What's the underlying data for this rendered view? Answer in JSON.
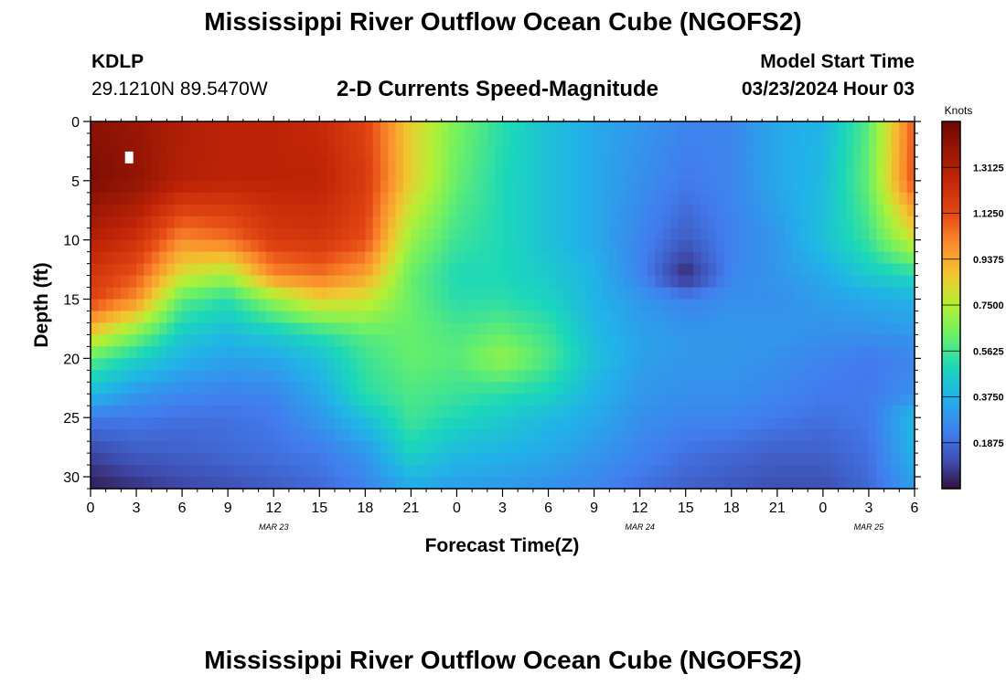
{
  "header": {
    "title": "Mississippi River Outflow Ocean Cube (NGOFS2)",
    "station": "KDLP",
    "coords": "29.1210N  89.5470W",
    "subtitle": "2-D Currents Speed-Magnitude",
    "model_start_label": "Model Start Time",
    "model_start_value": "03/23/2024 Hour 03"
  },
  "footer": {
    "title": "Mississippi River Outflow Ocean Cube (NGOFS2)"
  },
  "chart_data": {
    "type": "heatmap",
    "title": "2-D Currents Speed-Magnitude",
    "xlabel": "Forecast Time(Z)",
    "ylabel": "Depth (ft)",
    "xlim": [
      0,
      54
    ],
    "ylim": [
      31,
      0
    ],
    "x_ticks": [
      0,
      3,
      6,
      9,
      12,
      15,
      18,
      21,
      24,
      27,
      30,
      33,
      36,
      39,
      42,
      45,
      48,
      51,
      54
    ],
    "x_tick_labels": [
      "0",
      "3",
      "6",
      "9",
      "12",
      "15",
      "18",
      "21",
      "0",
      "3",
      "6",
      "9",
      "12",
      "15",
      "18",
      "21",
      "0",
      "3",
      "6"
    ],
    "y_ticks": [
      0,
      5,
      10,
      15,
      20,
      25,
      30
    ],
    "y_tick_labels": [
      "0",
      "5",
      "10",
      "15",
      "20",
      "25",
      "30"
    ],
    "date_labels": [
      {
        "x": 12,
        "text": "MAR 23"
      },
      {
        "x": 36,
        "text": "MAR 24"
      },
      {
        "x": 51,
        "text": "MAR 25"
      }
    ],
    "colorbar": {
      "label": "Knots",
      "range": [
        0,
        1.5
      ],
      "ticks": [
        0.1875,
        0.375,
        0.5625,
        0.75,
        0.9375,
        1.125,
        1.3125
      ],
      "tick_labels": [
        "0.1875",
        "0.3750",
        "0.5625",
        "0.7500",
        "0.9375",
        "1.1250",
        "1.3125"
      ]
    },
    "depth_levels": [
      0,
      5,
      10,
      13,
      15,
      18,
      20,
      23,
      25,
      28,
      31
    ],
    "time_hours": [
      0,
      3,
      6,
      9,
      12,
      15,
      18,
      21,
      24,
      27,
      30,
      33,
      36,
      39,
      42,
      45,
      48,
      51,
      54
    ],
    "values": [
      [
        1.42,
        1.38,
        1.32,
        1.28,
        1.28,
        1.25,
        1.15,
        0.85,
        0.65,
        0.52,
        0.42,
        0.35,
        0.3,
        0.25,
        0.25,
        0.35,
        0.38,
        0.6,
        1.1
      ],
      [
        1.45,
        1.4,
        1.3,
        1.28,
        1.28,
        1.28,
        1.18,
        0.85,
        0.62,
        0.5,
        0.42,
        0.35,
        0.28,
        0.22,
        0.25,
        0.35,
        0.4,
        0.62,
        1.12
      ],
      [
        1.3,
        1.22,
        1.0,
        1.05,
        1.18,
        1.2,
        1.12,
        0.7,
        0.55,
        0.5,
        0.42,
        0.35,
        0.25,
        0.15,
        0.24,
        0.3,
        0.42,
        0.55,
        0.8
      ],
      [
        1.2,
        1.1,
        0.8,
        0.72,
        1.0,
        1.05,
        0.95,
        0.62,
        0.5,
        0.5,
        0.45,
        0.38,
        0.25,
        0.04,
        0.25,
        0.3,
        0.35,
        0.45,
        0.5
      ],
      [
        1.15,
        1.0,
        0.6,
        0.52,
        0.7,
        0.85,
        0.8,
        0.62,
        0.52,
        0.52,
        0.48,
        0.38,
        0.3,
        0.24,
        0.28,
        0.28,
        0.32,
        0.35,
        0.38
      ],
      [
        0.85,
        0.65,
        0.45,
        0.4,
        0.45,
        0.52,
        0.6,
        0.62,
        0.58,
        0.62,
        0.55,
        0.4,
        0.33,
        0.3,
        0.3,
        0.3,
        0.28,
        0.28,
        0.3
      ],
      [
        0.6,
        0.48,
        0.38,
        0.33,
        0.35,
        0.42,
        0.55,
        0.62,
        0.6,
        0.7,
        0.58,
        0.42,
        0.33,
        0.3,
        0.3,
        0.28,
        0.25,
        0.22,
        0.25
      ],
      [
        0.4,
        0.3,
        0.26,
        0.24,
        0.25,
        0.35,
        0.52,
        0.58,
        0.55,
        0.52,
        0.48,
        0.38,
        0.3,
        0.28,
        0.28,
        0.25,
        0.22,
        0.22,
        0.28
      ],
      [
        0.22,
        0.22,
        0.2,
        0.2,
        0.22,
        0.3,
        0.42,
        0.56,
        0.5,
        0.45,
        0.4,
        0.35,
        0.28,
        0.25,
        0.25,
        0.22,
        0.2,
        0.22,
        0.4
      ],
      [
        0.1,
        0.15,
        0.16,
        0.18,
        0.2,
        0.22,
        0.3,
        0.48,
        0.4,
        0.38,
        0.35,
        0.3,
        0.25,
        0.2,
        0.18,
        0.16,
        0.16,
        0.2,
        0.38
      ],
      [
        0.02,
        0.06,
        0.1,
        0.12,
        0.15,
        0.18,
        0.24,
        0.35,
        0.32,
        0.3,
        0.28,
        0.25,
        0.2,
        0.16,
        0.14,
        0.12,
        0.12,
        0.18,
        0.32
      ]
    ],
    "marker": {
      "x": 2.5,
      "y": 3
    }
  }
}
